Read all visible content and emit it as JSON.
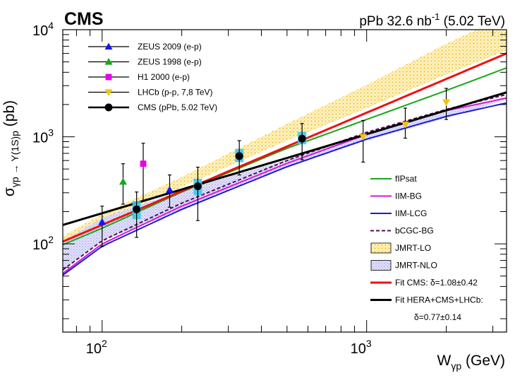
{
  "experiment": "CMS",
  "lumi": {
    "prefix": "pPb 32.6 nb",
    "superscript": "-1",
    "suffix": " (5.02 TeV)"
  },
  "chart_data": {
    "type": "scatter",
    "x_scale": "log",
    "y_scale": "log",
    "xlim": [
      71,
      3380
    ],
    "ylim": [
      15,
      10000
    ],
    "xlabel": {
      "main": "W",
      "sub": "γp",
      "rest": " (GeV)"
    },
    "ylabel": {
      "main": "σ",
      "sub": "γp → Υ(1S)p",
      "rest": " (pb)"
    },
    "x_ticks": [
      {
        "value": 100,
        "base": "10",
        "exp": "2"
      },
      {
        "value": 1000,
        "base": "10",
        "exp": "3"
      }
    ],
    "y_ticks": [
      {
        "value": 100,
        "base": "10",
        "exp": "2"
      },
      {
        "value": 1000,
        "base": "10",
        "exp": "3"
      },
      {
        "value": 10000,
        "base": "10",
        "exp": "4"
      }
    ],
    "data_series": [
      {
        "name": "ZEUS 2009 (e-p)",
        "marker": "triangle",
        "color": "#1414ff",
        "points": [
          {
            "x": 100,
            "y": 160,
            "lo": 95,
            "hi": 225
          },
          {
            "x": 180,
            "y": 320,
            "lo": 220,
            "hi": 440
          }
        ]
      },
      {
        "name": "ZEUS 1998 (e-p)",
        "marker": "triangle",
        "color": "#17a817",
        "points": [
          {
            "x": 120,
            "y": 380,
            "lo": 235,
            "hi": 560
          }
        ]
      },
      {
        "name": "H1 2000 (e-p)",
        "marker": "square",
        "color": "#e600e6",
        "points": [
          {
            "x": 143,
            "y": 560,
            "lo": 250,
            "hi": 870
          }
        ]
      },
      {
        "name": "LHCb (p-p, 7,8 TeV)",
        "marker": "triangle-down",
        "color": "#f5c30f",
        "points": [
          {
            "x": 970,
            "y": 1000,
            "lo": 580,
            "hi": 1420
          },
          {
            "x": 1400,
            "y": 1300,
            "lo": 970,
            "hi": 1850
          },
          {
            "x": 2000,
            "y": 2100,
            "lo": 1450,
            "hi": 2830
          }
        ]
      },
      {
        "name": "CMS (pPb, 5.02 TeV)",
        "marker": "circle",
        "color": "#000000",
        "points": [
          {
            "x": 135,
            "y": 210,
            "lo": 115,
            "hi": 305,
            "band": [
              170,
              250
            ]
          },
          {
            "x": 230,
            "y": 345,
            "lo": 165,
            "hi": 520,
            "band": [
              285,
              405
            ]
          },
          {
            "x": 330,
            "y": 660,
            "lo": 440,
            "hi": 920,
            "band": [
              580,
              770
            ]
          },
          {
            "x": 570,
            "y": 960,
            "lo": 610,
            "hi": 1330,
            "band": [
              850,
              1110
            ]
          }
        ]
      }
    ],
    "model_bands": [
      {
        "name": "JMRT-LO",
        "color": "#f5c430",
        "x": [
          71,
          100,
          200,
          500,
          1000,
          2000,
          3380
        ],
        "lower": [
          100,
          160,
          340,
          920,
          1850,
          3800,
          6400
        ],
        "upper": [
          118,
          190,
          420,
          1320,
          3050,
          7400,
          13500
        ]
      },
      {
        "name": "JMRT-NLO",
        "color": "#8f8fe8",
        "x": [
          71,
          100,
          200,
          500,
          1000,
          2000,
          3380
        ],
        "lower": [
          57,
          108,
          205,
          520,
          920,
          1500,
          2220
        ],
        "upper": [
          105,
          175,
          315,
          610,
          1050,
          1700,
          2350
        ]
      }
    ],
    "model_curves": [
      {
        "name": "fIPsat",
        "color": "#17a817",
        "dash": "solid",
        "x": [
          71,
          100,
          200,
          500,
          1000,
          2000,
          3380
        ],
        "y": [
          98,
          140,
          305,
          780,
          1450,
          2700,
          4400
        ]
      },
      {
        "name": "IIM-BG",
        "color": "#d41ad4",
        "dash": "solid",
        "x": [
          71,
          100,
          200,
          500,
          1000,
          2000,
          3380
        ],
        "y": [
          53,
          100,
          225,
          565,
          1050,
          1750,
          2300
        ]
      },
      {
        "name": "IIM-LCG",
        "color": "#1c1cd0",
        "dash": "solid",
        "x": [
          71,
          100,
          200,
          500,
          1000,
          2000,
          3380
        ],
        "y": [
          51,
          95,
          210,
          525,
          950,
          1550,
          2070
        ]
      },
      {
        "name": "bCGC-BG",
        "color": "#5a0a5a",
        "dash": "dashed",
        "x": [
          71,
          100,
          200,
          500,
          1000,
          2000,
          3380
        ],
        "y": [
          57,
          107,
          240,
          600,
          1100,
          1800,
          2480
        ]
      },
      {
        "name": "Fit CMS: δ=1.08±0.42",
        "color": "#ee1111",
        "dash": "solid",
        "x": [
          71,
          3380
        ],
        "y": [
          105,
          6000
        ]
      },
      {
        "name": "Fit HERA+CMS+LHCb: δ=0.77±0.14",
        "color": "#000000",
        "dash": "solid",
        "x": [
          71,
          3380
        ],
        "y": [
          150,
          2600
        ]
      }
    ],
    "legend_top": [
      {
        "label": "ZEUS 2009 (e-p)",
        "marker": "triangle",
        "color": "#1414ff"
      },
      {
        "label": "ZEUS 1998 (e-p)",
        "marker": "triangle",
        "color": "#17a817"
      },
      {
        "label": "H1 2000 (e-p)",
        "marker": "square",
        "color": "#e600e6"
      },
      {
        "label": "LHCb (p-p, 7,8 TeV)",
        "marker": "triangle-down",
        "color": "#f5c30f"
      },
      {
        "label": "CMS (pPb, 5.02 TeV)",
        "marker": "circle",
        "color": "#000000"
      }
    ],
    "legend_bottom": [
      {
        "label": "fIPsat",
        "kind": "line",
        "color": "#17a817"
      },
      {
        "label": "IIM-BG",
        "kind": "line",
        "color": "#d41ad4"
      },
      {
        "label": "IIM-LCG",
        "kind": "line",
        "color": "#1c1cd0"
      },
      {
        "label": "bCGC-BG",
        "kind": "dashed",
        "color": "#5a0a5a"
      },
      {
        "label": "JMRT-LO",
        "kind": "band",
        "color": "#f5c430"
      },
      {
        "label": "JMRT-NLO",
        "kind": "band",
        "color": "#8f8fe8"
      },
      {
        "label": "Fit CMS: δ=1.08±0.42",
        "kind": "thick",
        "color": "#ee1111"
      },
      {
        "label": "Fit HERA+CMS+LHCb:",
        "kind": "thick",
        "color": "#000000"
      },
      {
        "label": "δ=0.77±0.14",
        "kind": "none",
        "color": "#000000"
      }
    ]
  }
}
